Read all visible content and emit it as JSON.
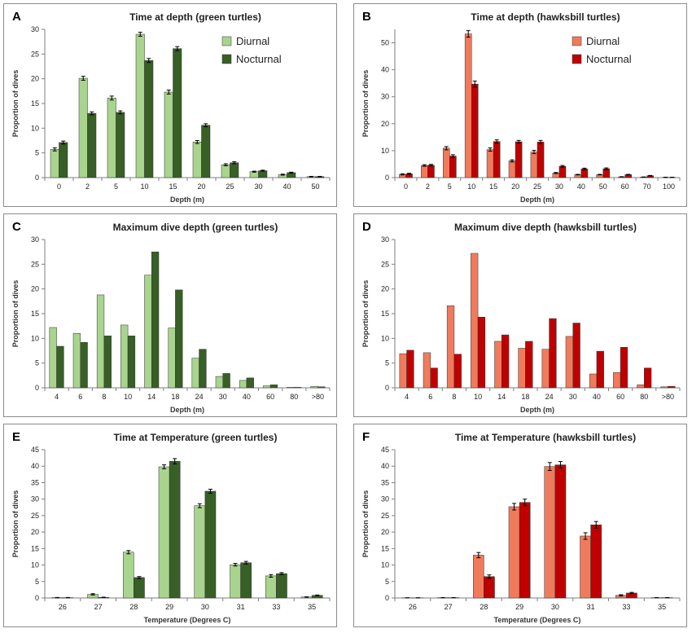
{
  "colors": {
    "green_diurnal": "#a8d48e",
    "green_nocturnal": "#375f26",
    "red_diurnal": "#f07b5c",
    "red_nocturnal": "#c00000",
    "bar_stroke": "#333333",
    "axis": "#7f7f7f"
  },
  "chart_data": [
    {
      "panel_letter": "A",
      "type": "bar",
      "title": "Time at depth (green turtles)",
      "xlabel": "Depth (m)",
      "ylabel": "Proportion of dives",
      "ylim": [
        0,
        30
      ],
      "yticks": [
        0,
        5,
        10,
        15,
        20,
        25,
        30
      ],
      "grid": false,
      "legend": "top-right",
      "error_bars": true,
      "palette": "green",
      "categories": [
        "0",
        "2",
        "5",
        "10",
        "15",
        "20",
        "25",
        "30",
        "40",
        "50"
      ],
      "series": [
        {
          "name": "Diurnal",
          "values": [
            5.7,
            20.1,
            16.1,
            29.0,
            17.3,
            7.2,
            2.6,
            1.2,
            0.6,
            0.2
          ],
          "errors": [
            0.3,
            0.4,
            0.4,
            0.4,
            0.4,
            0.3,
            0.2,
            0.1,
            0.1,
            0.05
          ]
        },
        {
          "name": "Nocturnal",
          "values": [
            7.1,
            13.0,
            13.2,
            23.7,
            26.1,
            10.6,
            3.0,
            1.4,
            1.0,
            0.2
          ],
          "errors": [
            0.3,
            0.3,
            0.3,
            0.4,
            0.4,
            0.3,
            0.2,
            0.1,
            0.1,
            0.05
          ]
        }
      ]
    },
    {
      "panel_letter": "B",
      "type": "bar",
      "title": "Time at depth (hawksbill turtles)",
      "xlabel": "Depth (m)",
      "ylabel": "Proportion of dives",
      "ylim": [
        0,
        55
      ],
      "yticks": [
        0,
        10,
        20,
        30,
        40,
        50
      ],
      "grid": false,
      "legend": "top-right",
      "error_bars": true,
      "palette": "red",
      "categories": [
        "0",
        "2",
        "5",
        "10",
        "15",
        "20",
        "25",
        "30",
        "40",
        "50",
        "60",
        "70",
        "100"
      ],
      "series": [
        {
          "name": "Diurnal",
          "values": [
            1.2,
            4.5,
            10.9,
            53.3,
            10.4,
            6.2,
            9.5,
            1.7,
            1.1,
            1.1,
            0.3,
            0.2,
            0.1
          ],
          "errors": [
            0.2,
            0.3,
            0.6,
            1.2,
            0.6,
            0.4,
            0.6,
            0.2,
            0.1,
            0.1,
            0.05,
            0.05,
            0.05
          ]
        },
        {
          "name": "Nocturnal",
          "values": [
            1.4,
            4.6,
            8.0,
            34.7,
            13.4,
            13.3,
            13.2,
            4.2,
            3.2,
            3.3,
            1.1,
            0.7,
            0.1
          ],
          "errors": [
            0.2,
            0.3,
            0.5,
            1.1,
            0.6,
            0.5,
            0.6,
            0.3,
            0.3,
            0.3,
            0.1,
            0.1,
            0.05
          ]
        }
      ]
    },
    {
      "panel_letter": "C",
      "type": "bar",
      "title": "Maximum dive depth (green turtles)",
      "xlabel": "Depth (m)",
      "ylabel": "Proportion of dives",
      "ylim": [
        0,
        30
      ],
      "yticks": [
        0,
        5,
        10,
        15,
        20,
        25,
        30
      ],
      "grid": false,
      "legend": "none",
      "error_bars": false,
      "palette": "green",
      "categories": [
        "4",
        "6",
        "8",
        "10",
        "14",
        "18",
        "24",
        "30",
        "40",
        "60",
        "80",
        ">80"
      ],
      "series": [
        {
          "values": [
            12.2,
            11.0,
            18.8,
            12.7,
            22.8,
            12.1,
            6.0,
            2.3,
            1.5,
            0.4,
            0.1,
            0.3
          ]
        },
        {
          "values": [
            8.4,
            9.2,
            10.5,
            10.5,
            27.5,
            19.8,
            7.8,
            2.9,
            2.0,
            0.6,
            0.1,
            0.2
          ]
        }
      ]
    },
    {
      "panel_letter": "D",
      "type": "bar",
      "title": "Maximum dive depth (hawksbill turtles)",
      "xlabel": "Depth (m)",
      "ylabel": "Proportion of dives",
      "ylim": [
        0,
        30
      ],
      "yticks": [
        0,
        5,
        10,
        15,
        20,
        25,
        30
      ],
      "grid": false,
      "legend": "none",
      "error_bars": false,
      "palette": "red",
      "categories": [
        "4",
        "6",
        "8",
        "10",
        "14",
        "18",
        "24",
        "30",
        "40",
        "60",
        "80",
        ">80"
      ],
      "series": [
        {
          "values": [
            6.9,
            7.1,
            16.6,
            27.2,
            9.4,
            8.0,
            7.8,
            10.4,
            2.8,
            3.1,
            0.6,
            0.2
          ]
        },
        {
          "values": [
            7.6,
            4.0,
            6.8,
            14.3,
            10.7,
            9.4,
            14.0,
            13.1,
            7.4,
            8.2,
            4.0,
            0.3
          ]
        }
      ]
    },
    {
      "panel_letter": "E",
      "type": "bar",
      "title": "Time at Temperature (green turtles)",
      "xlabel": "Temperature (Degrees C)",
      "ylabel": "Proportion of dives",
      "ylim": [
        0,
        45
      ],
      "yticks": [
        0,
        5,
        10,
        15,
        20,
        25,
        30,
        35,
        40,
        45
      ],
      "grid": false,
      "legend": "none",
      "error_bars": true,
      "palette": "green",
      "categories": [
        "26",
        "27",
        "28",
        "29",
        "30",
        "31",
        "33",
        "35"
      ],
      "series": [
        {
          "values": [
            0.1,
            1.1,
            13.9,
            39.8,
            28.0,
            10.1,
            6.7,
            0.3
          ],
          "errors": [
            0.05,
            0.2,
            0.5,
            0.6,
            0.6,
            0.4,
            0.4,
            0.05
          ]
        },
        {
          "values": [
            0.1,
            0.2,
            6.2,
            41.5,
            32.4,
            10.7,
            7.4,
            0.8
          ],
          "errors": [
            0.05,
            0.05,
            0.3,
            0.8,
            0.6,
            0.4,
            0.3,
            0.1
          ]
        }
      ]
    },
    {
      "panel_letter": "F",
      "type": "bar",
      "title": "Time at Temperature (hawksbill turtles)",
      "xlabel": "Temperature (Degrees C)",
      "ylabel": "Proportion of dives",
      "ylim": [
        0,
        45
      ],
      "yticks": [
        0,
        5,
        10,
        15,
        20,
        25,
        30,
        35,
        40,
        45
      ],
      "grid": false,
      "legend": "none",
      "error_bars": true,
      "palette": "red",
      "categories": [
        "26",
        "27",
        "28",
        "29",
        "30",
        "31",
        "33",
        "35"
      ],
      "series": [
        {
          "values": [
            0.05,
            0.1,
            13.0,
            27.7,
            39.9,
            18.8,
            0.8,
            0.1
          ],
          "errors": [
            0.02,
            0.02,
            0.8,
            1.0,
            1.2,
            1.0,
            0.2,
            0.02
          ]
        },
        {
          "values": [
            0.05,
            0.1,
            6.5,
            29.0,
            40.4,
            22.2,
            1.5,
            0.1
          ],
          "errors": [
            0.02,
            0.02,
            0.5,
            1.0,
            1.0,
            1.0,
            0.2,
            0.02
          ]
        }
      ]
    }
  ]
}
